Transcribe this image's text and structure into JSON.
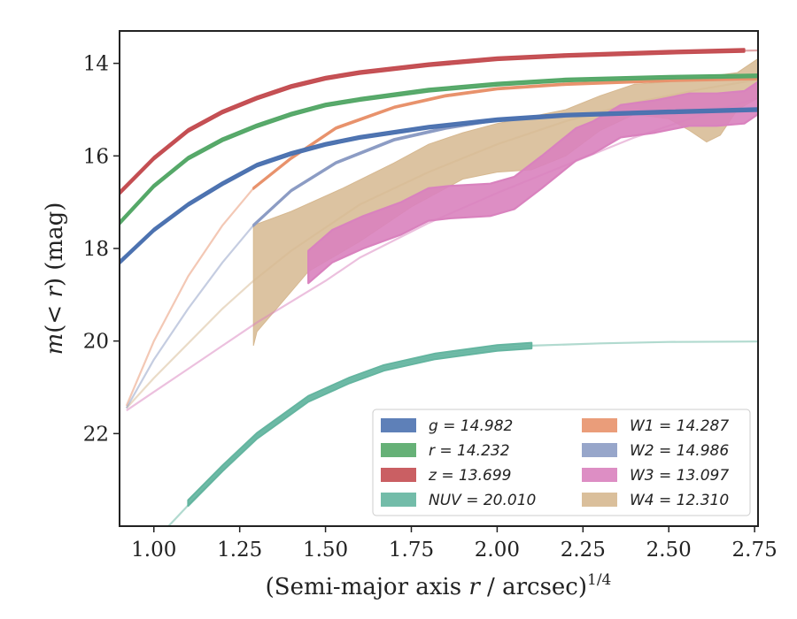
{
  "chart_data": {
    "type": "line",
    "xlabel": "(Semi-major axis r / arcsec)^1/4",
    "ylabel": "m(<r) (mag)",
    "xlim": [
      0.9,
      2.76
    ],
    "ylim": [
      24.0,
      13.3
    ],
    "y_inverted": true,
    "grid": false,
    "legend_position": "lower-right",
    "x_ticks": [
      1.0,
      1.25,
      1.5,
      1.75,
      2.0,
      2.25,
      2.5,
      2.75
    ],
    "x_tick_labels": [
      "1.00",
      "1.25",
      "1.50",
      "1.75",
      "2.00",
      "2.25",
      "2.50",
      "2.75"
    ],
    "y_ticks": [
      14,
      16,
      18,
      20,
      22
    ],
    "y_tick_labels": [
      "14",
      "16",
      "18",
      "20",
      "22"
    ],
    "series": [
      {
        "name": "g = 14.982",
        "legend_label": "g = 14.982",
        "color": "#4c72b0",
        "faint": {
          "x": [
            0.9,
            1.0,
            1.1,
            1.2,
            1.3,
            1.4,
            1.5,
            1.6,
            1.8,
            2.0,
            2.2,
            2.5,
            2.76
          ],
          "y": [
            18.3,
            17.6,
            17.05,
            16.6,
            16.2,
            15.95,
            15.75,
            15.6,
            15.38,
            15.22,
            15.12,
            15.05,
            15.0
          ]
        },
        "bold": {
          "x": [
            0.9,
            1.0,
            1.1,
            1.2,
            1.3,
            1.4,
            1.5,
            1.6,
            1.8,
            2.0,
            2.2,
            2.5,
            2.76
          ],
          "y": [
            18.3,
            17.6,
            17.05,
            16.6,
            16.2,
            15.95,
            15.75,
            15.6,
            15.38,
            15.22,
            15.12,
            15.05,
            15.0
          ]
        },
        "band_width": 0.06
      },
      {
        "name": "r = 14.232",
        "legend_label": "r = 14.232",
        "color": "#55a868",
        "faint": {
          "x": [
            0.9,
            1.0,
            1.1,
            1.2,
            1.3,
            1.4,
            1.5,
            1.6,
            1.8,
            2.0,
            2.2,
            2.5,
            2.76
          ],
          "y": [
            17.45,
            16.65,
            16.05,
            15.65,
            15.35,
            15.1,
            14.9,
            14.78,
            14.58,
            14.45,
            14.36,
            14.3,
            14.27
          ]
        },
        "bold": {
          "x": [
            0.9,
            1.0,
            1.1,
            1.2,
            1.3,
            1.4,
            1.5,
            1.6,
            1.8,
            2.0,
            2.2,
            2.5,
            2.76
          ],
          "y": [
            17.45,
            16.65,
            16.05,
            15.65,
            15.35,
            15.1,
            14.9,
            14.78,
            14.58,
            14.45,
            14.36,
            14.3,
            14.27
          ]
        },
        "band_width": 0.06
      },
      {
        "name": "z = 13.699",
        "legend_label": "z = 13.699",
        "color": "#c44e52",
        "faint": {
          "x": [
            0.9,
            1.0,
            1.1,
            1.2,
            1.3,
            1.4,
            1.5,
            1.6,
            1.8,
            2.0,
            2.2,
            2.5,
            2.76
          ],
          "y": [
            16.8,
            16.05,
            15.45,
            15.05,
            14.75,
            14.5,
            14.32,
            14.2,
            14.03,
            13.9,
            13.83,
            13.76,
            13.72
          ]
        },
        "bold": {
          "x": [
            0.9,
            1.0,
            1.1,
            1.2,
            1.3,
            1.4,
            1.5,
            1.6,
            1.8,
            2.0,
            2.2,
            2.5,
            2.72
          ],
          "y": [
            16.8,
            16.05,
            15.45,
            15.05,
            14.75,
            14.5,
            14.32,
            14.2,
            14.03,
            13.9,
            13.83,
            13.76,
            13.72
          ]
        },
        "band_width": 0.06
      },
      {
        "name": "NUV = 20.010",
        "legend_label": "NUV = 20.010",
        "color": "#64b5a0",
        "faint": {
          "x": [
            1.03,
            1.1,
            1.2,
            1.3,
            1.45,
            1.57,
            1.67,
            1.82,
            2.0,
            2.1,
            2.3,
            2.5,
            2.76
          ],
          "y": [
            24.1,
            23.55,
            22.75,
            22.05,
            21.25,
            20.85,
            20.58,
            20.33,
            20.15,
            20.1,
            20.05,
            20.02,
            20.01
          ]
        },
        "bold": {
          "x": [
            1.1,
            1.2,
            1.3,
            1.45,
            1.57,
            1.67,
            1.82,
            2.0,
            2.1
          ],
          "y": [
            23.5,
            22.75,
            22.05,
            21.25,
            20.85,
            20.58,
            20.33,
            20.15,
            20.1
          ]
        },
        "band_width": 0.12
      },
      {
        "name": "W1 = 14.287",
        "legend_label": "W1 = 14.287",
        "color": "#e8926c",
        "faint": {
          "x": [
            0.92,
            1.0,
            1.1,
            1.2,
            1.29,
            1.4,
            1.53,
            1.7,
            1.85,
            2.0,
            2.2,
            2.5,
            2.76
          ],
          "y": [
            21.4,
            20.0,
            18.6,
            17.5,
            16.7,
            16.05,
            15.4,
            14.95,
            14.7,
            14.55,
            14.45,
            14.37,
            14.33
          ]
        },
        "bold": {
          "x": [
            1.29,
            1.4,
            1.53,
            1.7,
            1.85,
            2.0,
            2.2,
            2.5,
            2.76
          ],
          "y": [
            16.7,
            16.05,
            15.4,
            14.95,
            14.7,
            14.55,
            14.45,
            14.37,
            14.33
          ]
        },
        "band_width": 0.03
      },
      {
        "name": "W2 = 14.986",
        "legend_label": "W2 = 14.986",
        "color": "#8c9cc4",
        "faint": {
          "x": [
            0.92,
            1.0,
            1.1,
            1.2,
            1.29,
            1.4,
            1.53,
            1.7,
            1.85,
            2.0,
            2.2,
            2.5,
            2.76
          ],
          "y": [
            21.45,
            20.4,
            19.3,
            18.3,
            17.5,
            16.75,
            16.15,
            15.65,
            15.4,
            15.22,
            15.12,
            15.05,
            15.0
          ]
        },
        "bold": {
          "x": [
            1.29,
            1.4,
            1.53,
            1.7,
            1.85,
            2.0,
            2.2,
            2.5,
            2.76
          ],
          "y": [
            17.5,
            16.75,
            16.15,
            15.65,
            15.4,
            15.22,
            15.12,
            15.05,
            15.0
          ]
        },
        "band_width": 0.03
      },
      {
        "name": "W3 = 13.097",
        "legend_label": "W3 = 13.097",
        "color": "#d982be",
        "faint": {
          "x": [
            0.92,
            1.0,
            1.1,
            1.2,
            1.3,
            1.4,
            1.5,
            1.6,
            1.8,
            2.0,
            2.2,
            2.4,
            2.6,
            2.76
          ],
          "y": [
            21.5,
            21.1,
            20.6,
            20.1,
            19.6,
            19.15,
            18.7,
            18.2,
            17.45,
            16.8,
            16.2,
            15.6,
            15.1,
            14.75
          ]
        },
        "bold": {
          "x": [
            1.45,
            1.52,
            1.61,
            1.72,
            1.8,
            1.86,
            1.98,
            2.05,
            2.13,
            2.23,
            2.28,
            2.36,
            2.46,
            2.56,
            2.64,
            2.72,
            2.76
          ],
          "y": [
            18.4,
            17.95,
            17.65,
            17.35,
            17.05,
            17.0,
            16.95,
            16.8,
            16.35,
            15.75,
            15.6,
            15.25,
            15.15,
            15.0,
            15.0,
            14.95,
            14.75
          ]
        },
        "band_width": 0.7
      },
      {
        "name": "W4 = 12.310",
        "legend_label": "W4 = 12.310",
        "color": "#d6b890",
        "faint": {
          "x": [
            0.92,
            1.0,
            1.1,
            1.2,
            1.29,
            1.4,
            1.5,
            1.6,
            1.8,
            2.0,
            2.2,
            2.4,
            2.6,
            2.76
          ],
          "y": [
            21.45,
            20.8,
            20.05,
            19.3,
            18.7,
            18.05,
            17.55,
            17.05,
            16.35,
            15.75,
            15.25,
            14.85,
            14.55,
            14.35
          ]
        },
        "upper": {
          "x": [
            1.29,
            1.4,
            1.55,
            1.7,
            1.8,
            1.9,
            2.0,
            2.1,
            2.2,
            2.3,
            2.4,
            2.5,
            2.6,
            2.7,
            2.76
          ],
          "y": [
            17.5,
            17.2,
            16.7,
            16.15,
            15.75,
            15.5,
            15.3,
            15.15,
            15.0,
            14.7,
            14.45,
            14.4,
            14.3,
            14.2,
            13.9
          ]
        },
        "lower": {
          "x": [
            1.29,
            1.3,
            1.45,
            1.6,
            1.75,
            1.9,
            2.0,
            2.1,
            2.2,
            2.3,
            2.4,
            2.5,
            2.56,
            2.61,
            2.65,
            2.7,
            2.76
          ],
          "y": [
            20.1,
            19.8,
            18.5,
            17.85,
            17.1,
            16.5,
            16.35,
            16.3,
            16.0,
            15.45,
            15.1,
            15.2,
            15.45,
            15.7,
            15.55,
            15.0,
            14.75
          ]
        }
      }
    ]
  }
}
